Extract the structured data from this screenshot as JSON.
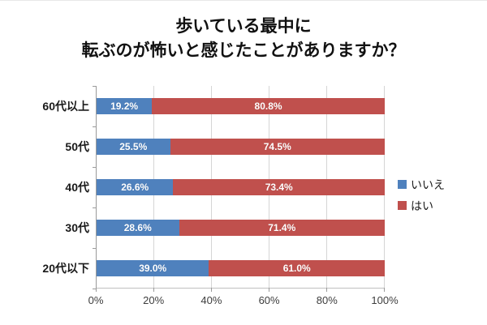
{
  "title": {
    "line1": "歩いている最中に",
    "line2": "転ぶのが怖いと感じたことがありますか？"
  },
  "chart_data": {
    "type": "bar",
    "orientation": "horizontal",
    "stacked": true,
    "title": "歩いている最中に 転ぶのが怖いと感じたことがありますか？",
    "categories": [
      "60代以上",
      "50代",
      "40代",
      "30代",
      "20代以下"
    ],
    "series": [
      {
        "name": "いいえ",
        "color": "#4F81BD",
        "values": [
          19.2,
          25.5,
          26.6,
          28.6,
          39.0
        ]
      },
      {
        "name": "はい",
        "color": "#C0504D",
        "values": [
          80.8,
          74.5,
          73.4,
          71.4,
          61.0
        ]
      }
    ],
    "value_label_suffix": "%",
    "xlim": [
      0,
      100
    ],
    "x_ticks": [
      {
        "value": 0,
        "label": "0%"
      },
      {
        "value": 20,
        "label": "20%"
      },
      {
        "value": 40,
        "label": "40%"
      },
      {
        "value": 60,
        "label": "60%"
      },
      {
        "value": 80,
        "label": "80%"
      },
      {
        "value": 100,
        "label": "100%"
      }
    ],
    "grid": true,
    "legend_position": "right"
  },
  "colors": {
    "no_series": "#4F81BD",
    "yes_series": "#C0504D",
    "gridline": "#d5d5d5",
    "axis": "#9a9a9a"
  }
}
